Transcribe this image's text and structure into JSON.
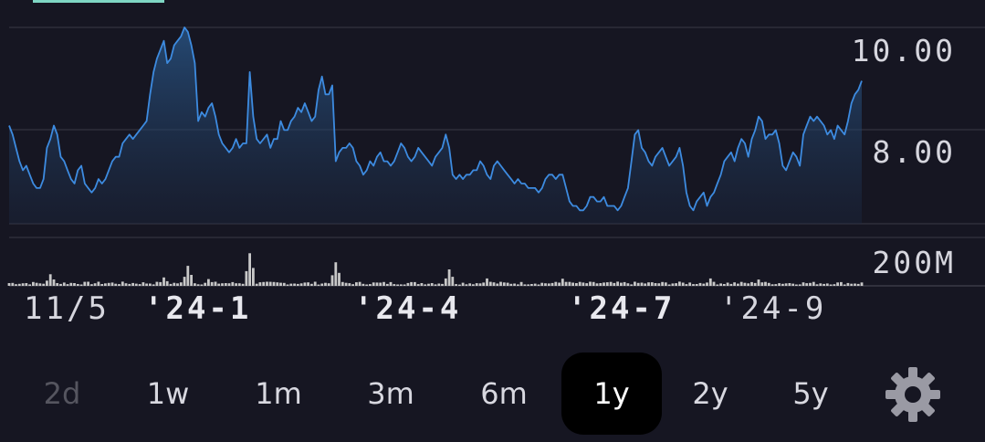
{
  "colors": {
    "background": "#161622",
    "line": "#3d8be0",
    "volume": "#c8c8c8",
    "grid": "#3a3a46",
    "accent": "#7fd6c4"
  },
  "chart_data": {
    "type": "line",
    "y_ticks": [
      "10.00",
      "8.00"
    ],
    "y_range": [
      6.2,
      10.6
    ],
    "volume_ticks": [
      "200M"
    ],
    "volume_range": [
      0,
      230
    ],
    "x_ticks": [
      {
        "label": "11/5",
        "major": false,
        "index": 0
      },
      {
        "label": "'24-1",
        "major": true,
        "index": 38
      },
      {
        "label": "'24-4",
        "major": true,
        "index": 101
      },
      {
        "label": "'24-7",
        "major": true,
        "index": 163
      },
      {
        "label": "'24-9",
        "major": false,
        "index": 206
      }
    ],
    "price": [
      8.4,
      8.2,
      7.9,
      7.6,
      7.4,
      7.5,
      7.3,
      7.1,
      7.0,
      7.0,
      7.2,
      7.9,
      8.1,
      8.4,
      8.2,
      7.7,
      7.6,
      7.4,
      7.2,
      7.1,
      7.4,
      7.5,
      7.1,
      7.0,
      6.9,
      7.0,
      7.2,
      7.1,
      7.2,
      7.4,
      7.6,
      7.7,
      7.7,
      8.0,
      8.1,
      8.2,
      8.1,
      8.2,
      8.3,
      8.4,
      8.5,
      9.1,
      9.6,
      9.9,
      10.1,
      10.3,
      9.8,
      9.9,
      10.2,
      10.3,
      10.4,
      10.6,
      10.5,
      10.2,
      9.8,
      8.5,
      8.7,
      8.6,
      8.8,
      8.9,
      8.6,
      8.2,
      8.0,
      7.9,
      7.8,
      7.9,
      8.1,
      7.9,
      8.0,
      8.0,
      9.6,
      8.6,
      8.1,
      8.0,
      8.1,
      8.2,
      7.9,
      8.1,
      8.1,
      8.5,
      8.3,
      8.3,
      8.5,
      8.6,
      8.8,
      8.7,
      8.9,
      8.7,
      8.5,
      8.6,
      9.2,
      9.5,
      9.1,
      9.1,
      9.3,
      7.6,
      7.8,
      7.9,
      7.9,
      8.0,
      7.9,
      7.6,
      7.5,
      7.3,
      7.4,
      7.6,
      7.5,
      7.7,
      7.8,
      7.6,
      7.6,
      7.5,
      7.6,
      7.8,
      8.0,
      7.9,
      7.7,
      7.6,
      7.7,
      7.9,
      7.8,
      7.7,
      7.6,
      7.5,
      7.7,
      7.8,
      7.9,
      8.2,
      7.9,
      7.3,
      7.2,
      7.3,
      7.2,
      7.3,
      7.3,
      7.4,
      7.4,
      7.6,
      7.5,
      7.3,
      7.2,
      7.5,
      7.6,
      7.5,
      7.4,
      7.3,
      7.2,
      7.1,
      7.2,
      7.1,
      7.1,
      7.0,
      7.0,
      7.0,
      6.9,
      7.0,
      7.2,
      7.3,
      7.3,
      7.2,
      7.3,
      7.3,
      7.0,
      6.7,
      6.6,
      6.6,
      6.5,
      6.5,
      6.6,
      6.8,
      6.8,
      6.7,
      6.7,
      6.8,
      6.6,
      6.6,
      6.6,
      6.5,
      6.6,
      6.8,
      7.0,
      7.6,
      8.2,
      8.3,
      7.9,
      7.8,
      7.6,
      7.5,
      7.7,
      7.8,
      7.9,
      7.7,
      7.5,
      7.6,
      7.7,
      7.9,
      7.5,
      6.9,
      6.6,
      6.5,
      6.7,
      6.8,
      6.9,
      6.6,
      6.8,
      6.9,
      7.1,
      7.3,
      7.6,
      7.7,
      7.8,
      7.6,
      7.9,
      8.1,
      8.0,
      7.7,
      8.1,
      8.3,
      8.6,
      8.5,
      8.1,
      8.2,
      8.2,
      8.3,
      8.0,
      7.5,
      7.4,
      7.6,
      7.8,
      7.7,
      7.5,
      8.2,
      8.4,
      8.6,
      8.5,
      8.6,
      8.5,
      8.4,
      8.2,
      8.3,
      8.1,
      8.4,
      8.3,
      8.2,
      8.5,
      8.9,
      9.1,
      9.2,
      9.4
    ],
    "volume_spike_index": [
      [
        52,
        95
      ],
      [
        70,
        155
      ],
      [
        95,
        112
      ],
      [
        128,
        78
      ],
      [
        12,
        55
      ],
      [
        45,
        40
      ],
      [
        58,
        32
      ],
      [
        139,
        35
      ],
      [
        161,
        34
      ],
      [
        204,
        35
      ],
      [
        218,
        30
      ]
    ]
  },
  "range_buttons": [
    {
      "label": "2d",
      "state": "disabled"
    },
    {
      "label": "1w",
      "state": "normal"
    },
    {
      "label": "1m",
      "state": "normal"
    },
    {
      "label": "3m",
      "state": "normal"
    },
    {
      "label": "6m",
      "state": "normal"
    },
    {
      "label": "1y",
      "state": "active"
    },
    {
      "label": "2y",
      "state": "normal"
    },
    {
      "label": "5y",
      "state": "normal"
    }
  ],
  "settings_icon": "gear-icon"
}
